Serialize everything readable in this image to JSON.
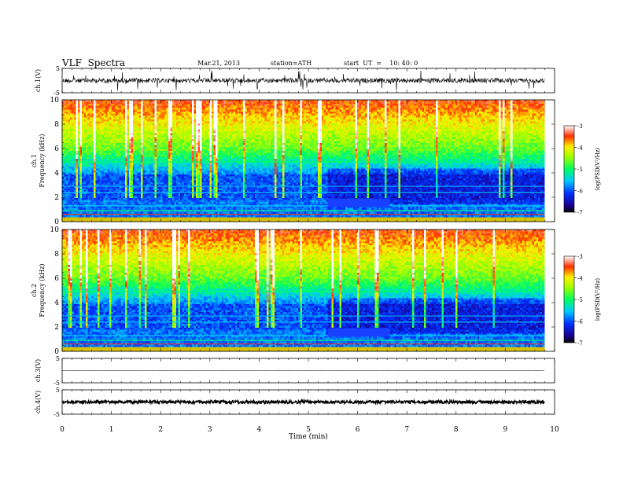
{
  "header": {
    "title": "VLF  Spectra",
    "date": "Mar.21, 2013",
    "station": "station=ATH",
    "start": "start  UT  =    10: 40: 0"
  },
  "chart_data": [
    {
      "type": "line",
      "panel": "ch1-waveform",
      "ylabel": "ch.1(V)",
      "yticks": [
        "5",
        "-5"
      ],
      "ylim": [
        -5,
        5
      ],
      "xlim": [
        0,
        10
      ]
    },
    {
      "type": "heatmap",
      "panel": "ch1-spectrogram",
      "ylabel": "ch.1\nFrequency  (kHz)",
      "ylabel_lines": [
        "ch.1",
        "Frequency  (kHz)"
      ],
      "yticks": [
        "0",
        "2",
        "4",
        "6",
        "8",
        "10"
      ],
      "ylim": [
        0,
        10
      ],
      "xlim": [
        0,
        10
      ],
      "colorbar": {
        "label": "log(PSD(V²/Hz)",
        "ticks": [
          "-3",
          "-4",
          "-5",
          "-6",
          "-7"
        ],
        "range": [
          -7,
          -3
        ]
      }
    },
    {
      "type": "heatmap",
      "panel": "ch2-spectrogram",
      "ylabel": "ch.2\nFrequency  (kHz)",
      "ylabel_lines": [
        "ch.2",
        "Frequency  (kHz)"
      ],
      "yticks": [
        "0",
        "2",
        "4",
        "6",
        "8",
        "10"
      ],
      "ylim": [
        0,
        10
      ],
      "xlim": [
        0,
        10
      ],
      "colorbar": {
        "label": "log(PSD(V²/Hz)",
        "ticks": [
          "-3",
          "-4",
          "-5",
          "-6",
          "-7"
        ],
        "range": [
          -7,
          -3
        ]
      }
    },
    {
      "type": "line",
      "panel": "ch3-waveform",
      "ylabel": "ch.3(V)",
      "yticks": [
        "5",
        "-5"
      ],
      "ylim": [
        -5,
        5
      ],
      "xlim": [
        0,
        10
      ]
    },
    {
      "type": "line",
      "panel": "ch4-waveform",
      "ylabel": "ch.4(V)",
      "yticks": [
        "5",
        "-5"
      ],
      "ylim": [
        -5,
        5
      ],
      "xlim": [
        0,
        10
      ]
    }
  ],
  "xaxis": {
    "label": "Time  (min)",
    "ticks": [
      "0",
      "1",
      "2",
      "3",
      "4",
      "5",
      "6",
      "7",
      "8",
      "9",
      "10"
    ],
    "range": [
      0,
      10
    ],
    "data_end": 9.8
  }
}
